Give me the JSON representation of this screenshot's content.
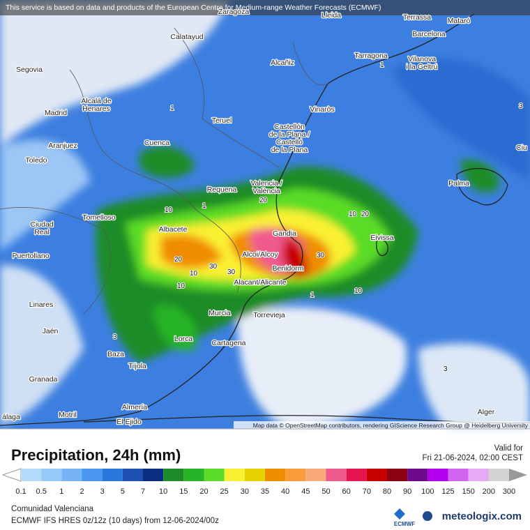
{
  "header": {
    "attribution": "This service is based on data and products of the European Centre for Medium-range Weather Forecasts (ECMWF)",
    "map_credit": "Map data © OpenStreetMap contributors, rendering GIScience Research Group @ Heidelberg University"
  },
  "cities": [
    [
      "Lleida"
    ],
    [
      "Zaragoza"
    ],
    [
      "Terrassa"
    ],
    [
      "Mataró"
    ],
    [
      "Barcelona"
    ],
    [
      "Calatayud"
    ],
    [
      "Tarragona"
    ],
    [
      "Vilanova",
      "i la Geltrú"
    ],
    [
      "Alcañiz"
    ],
    [
      "Segovia"
    ],
    [
      "Alcalá de",
      "Henares"
    ],
    [
      "Madrid"
    ],
    [
      "Vinaròs"
    ],
    [
      "Teruel"
    ],
    [
      "Castellón",
      "de la Plana /",
      "Castelló",
      "de la Plana"
    ],
    [
      "Aranjuez"
    ],
    [
      "Cuenca"
    ],
    [
      "Toledo"
    ],
    [
      "Valencia /",
      "València"
    ],
    [
      "Requena"
    ],
    [
      "Palma"
    ],
    [
      "Ciu"
    ],
    [
      "Tomelloso"
    ],
    [
      "Albacete"
    ],
    [
      "Ciudad",
      "Real"
    ],
    [
      "Gandia"
    ],
    [
      "Eivissa"
    ],
    [
      "Puertollano"
    ],
    [
      "Alcoi/Alcoy"
    ],
    [
      "Benidorm"
    ],
    [
      "Alacant/Alicante"
    ],
    [
      "Linares"
    ],
    [
      "Murcia"
    ],
    [
      "Torrevieja"
    ],
    [
      "Jaén"
    ],
    [
      "Lorca"
    ],
    [
      "Cartagena"
    ],
    [
      "Baza"
    ],
    [
      "Tíjola"
    ],
    [
      "Granada"
    ],
    [
      "Almería"
    ],
    [
      "Motril"
    ],
    [
      "El Ejido"
    ],
    [
      "Alger"
    ],
    [
      "álaga"
    ]
  ],
  "contour_labels": [
    "1",
    "1",
    "10",
    "20",
    "30",
    "30",
    "20",
    "10",
    "20",
    "30",
    "10",
    "10",
    "1",
    "3",
    "3",
    "3",
    "1",
    "10"
  ],
  "footer": {
    "title": "Precipitation, 24h (mm)",
    "valid_label": "Valid for",
    "valid_time": "Fri 21-06-2024, 02:00 CEST",
    "region": "Comunidad Valenciana",
    "model": "ECMWF IFS HRES 0z/12z (10 days) from 12-06-2024/00z",
    "ecmwf": "ECMWF",
    "brand": "meteologix.com"
  },
  "legend": {
    "labels": [
      "0.1",
      "0.5",
      "1",
      "2",
      "3",
      "5",
      "7",
      "10",
      "15",
      "20",
      "25",
      "30",
      "35",
      "40",
      "45",
      "50",
      "60",
      "70",
      "80",
      "90",
      "100",
      "125",
      "150",
      "200",
      "300"
    ],
    "colors": [
      "#b4dcfa",
      "#96c8f8",
      "#78b4f5",
      "#4b96f0",
      "#2878dc",
      "#1e50b4",
      "#0a2d82",
      "#1e8c28",
      "#28b428",
      "#5adc28",
      "#faf032",
      "#e6d200",
      "#f08c00",
      "#fa9b3c",
      "#faaa78",
      "#f05a8c",
      "#e61450",
      "#c80000",
      "#8c0014",
      "#6e0a8c",
      "#b400f0",
      "#d264f0",
      "#e6aaf5",
      "#d2d2d2"
    ]
  }
}
